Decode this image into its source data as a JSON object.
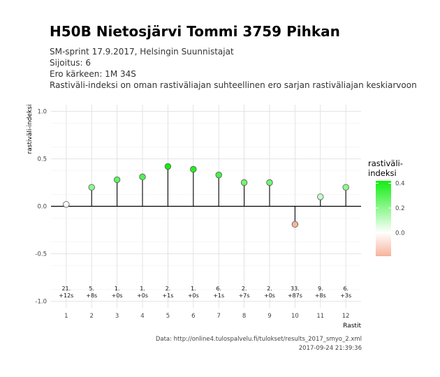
{
  "header": {
    "title": "H50B Nietosjärvi Tommi 3759 Pihkan",
    "subtitle_lines": [
      "SM-sprint 17.9.2017, Helsingin Suunnistajat",
      "Sijoitus: 6",
      "Ero kärkeen: 1M 34S",
      "Rastiväli-indeksi on oman rastiväliajan suhteellinen ero sarjan rastiväliajan keskiarvoon"
    ]
  },
  "caption": {
    "source": "Data: http://online4.tulospalvelu.fi/tulokset/results_2017_smyo_2.xml",
    "timestamp": "2017-09-24 21:39:36"
  },
  "chart_data": {
    "type": "lollipop",
    "xlabel": "Rastit",
    "ylabel": "rastiväli-indeksi",
    "ylim": [
      -1.0,
      1.0
    ],
    "yticks": [
      -1.0,
      -0.5,
      0.0,
      0.5,
      1.0
    ],
    "ytick_labels": [
      "-1.0",
      "-0.5",
      "0.0",
      "0.5",
      "1.0"
    ],
    "categories": [
      "1",
      "2",
      "3",
      "4",
      "5",
      "6",
      "7",
      "8",
      "9",
      "10",
      "11",
      "12"
    ],
    "values": [
      0.02,
      0.2,
      0.28,
      0.31,
      0.42,
      0.39,
      0.33,
      0.25,
      0.25,
      -0.19,
      0.1,
      0.2
    ],
    "rank_labels": [
      "21.",
      "5.",
      "1.",
      "1.",
      "2.",
      "1.",
      "6.",
      "2.",
      "2.",
      "33.",
      "9.",
      "6."
    ],
    "diff_labels": [
      "+12s",
      "+8s",
      "+0s",
      "+0s",
      "+1s",
      "+0s",
      "+1s",
      "+7s",
      "+0s",
      "+87s",
      "+8s",
      "+3s"
    ],
    "grid": true,
    "legend": {
      "title_lines": [
        "rastiväli-",
        "indeksi"
      ],
      "ticks": [
        0.4,
        0.2,
        0.0
      ],
      "tick_labels": [
        "0.4",
        "0.2",
        "0.0"
      ],
      "range": [
        -0.19,
        0.42
      ],
      "colors": {
        "low": "#f7b39c",
        "mid": "#ffffff",
        "high": "#11ee11"
      },
      "position": "right"
    }
  }
}
